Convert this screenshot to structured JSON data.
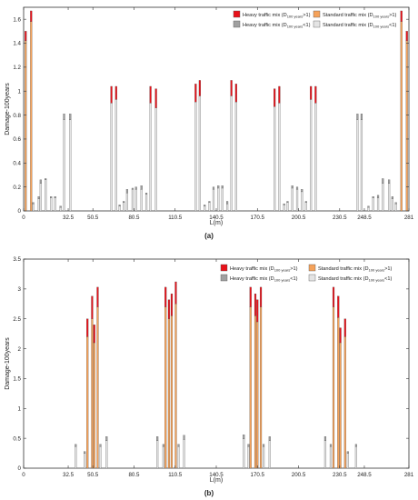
{
  "legend": {
    "heavy_gt1": "Heavy traffic mix (D",
    "heavy_lt1": "Heavy traffic mix (D",
    "standard_gt1": "Standard traffic mix (D",
    "standard_lt1": "Standard traffic mix (D",
    "sub": "100 years",
    "suffix_gt": ">1)",
    "suffix_lt": "<1)"
  },
  "colors": {
    "heavy_gt1": "#e8121a",
    "standard_gt1": "#f5a25a",
    "heavy_lt1": "#a0a0a0",
    "standard_lt1": "#e4e4e4"
  },
  "chart_data": [
    {
      "type": "bar",
      "panel_label": "(a)",
      "xlabel": "L(m)",
      "ylabel": "Damage-100years",
      "xlim": [
        0,
        281
      ],
      "ylim": [
        0,
        1.7
      ],
      "xticks": [
        0,
        32.5,
        50.5,
        80.5,
        110.5,
        140.5,
        170.5,
        200.5,
        230.5,
        248.5,
        281
      ],
      "xtick_labels": [
        "0",
        "32.5",
        "50.5",
        "80.5",
        "110.5",
        "140.5",
        "170.5",
        "200.5",
        "230.5",
        "248.5",
        "281"
      ],
      "yticks": [
        0,
        0.2,
        0.4,
        0.6,
        0.8,
        1,
        1.2,
        1.4,
        1.6
      ],
      "ytick_labels": [
        "0",
        "0.2",
        "0.4",
        "0.6",
        "0.8",
        "1",
        "1.2",
        "1.4",
        "1.6"
      ],
      "legend_placement": "top-right",
      "bars": [
        {
          "x": 1.5,
          "standard": 1.42,
          "heavy": 1.5
        },
        {
          "x": 5.5,
          "standard": 1.58,
          "heavy": 1.67
        },
        {
          "x": 7,
          "standard": 0.06,
          "heavy": 0.07
        },
        {
          "x": 11,
          "standard": 0.1,
          "heavy": 0.12
        },
        {
          "x": 12.5,
          "standard": 0.23,
          "heavy": 0.26
        },
        {
          "x": 16,
          "standard": 0.26,
          "heavy": 0.27
        },
        {
          "x": 20,
          "standard": 0.11,
          "heavy": 0.12
        },
        {
          "x": 23,
          "standard": 0.11,
          "heavy": 0.12
        },
        {
          "x": 27,
          "standard": 0.03,
          "heavy": 0.04
        },
        {
          "x": 29.5,
          "standard": 0.76,
          "heavy": 0.81
        },
        {
          "x": 34,
          "standard": 0.76,
          "heavy": 0.81
        },
        {
          "x": 64,
          "standard": 0.9,
          "heavy": 1.04
        },
        {
          "x": 67.5,
          "standard": 0.93,
          "heavy": 1.04
        },
        {
          "x": 70,
          "standard": 0.04,
          "heavy": 0.05
        },
        {
          "x": 73,
          "standard": 0.07,
          "heavy": 0.08
        },
        {
          "x": 75.5,
          "standard": 0.15,
          "heavy": 0.18
        },
        {
          "x": 79.5,
          "standard": 0.18,
          "heavy": 0.19
        },
        {
          "x": 82,
          "standard": 0.18,
          "heavy": 0.2
        },
        {
          "x": 86,
          "standard": 0.18,
          "heavy": 0.21
        },
        {
          "x": 89.5,
          "standard": 0.14,
          "heavy": 0.15
        },
        {
          "x": 92.5,
          "standard": 0.9,
          "heavy": 1.04
        },
        {
          "x": 96.5,
          "standard": 0.86,
          "heavy": 1.02
        },
        {
          "x": 125.5,
          "standard": 0.91,
          "heavy": 1.06
        },
        {
          "x": 128.5,
          "standard": 0.96,
          "heavy": 1.09
        },
        {
          "x": 132,
          "standard": 0.04,
          "heavy": 0.05
        },
        {
          "x": 135.5,
          "standard": 0.07,
          "heavy": 0.08
        },
        {
          "x": 138.5,
          "standard": 0.18,
          "heavy": 0.2
        },
        {
          "x": 142,
          "standard": 0.19,
          "heavy": 0.21
        },
        {
          "x": 145,
          "standard": 0.19,
          "heavy": 0.21
        },
        {
          "x": 148.5,
          "standard": 0.06,
          "heavy": 0.08
        },
        {
          "x": 151.5,
          "standard": 0.96,
          "heavy": 1.09
        },
        {
          "x": 155,
          "standard": 0.91,
          "heavy": 1.06
        },
        {
          "x": 183,
          "standard": 0.87,
          "heavy": 1.02
        },
        {
          "x": 186.5,
          "standard": 0.9,
          "heavy": 1.04
        },
        {
          "x": 190,
          "standard": 0.05,
          "heavy": 0.06
        },
        {
          "x": 192.5,
          "standard": 0.07,
          "heavy": 0.08
        },
        {
          "x": 196,
          "standard": 0.19,
          "heavy": 0.21
        },
        {
          "x": 199.5,
          "standard": 0.18,
          "heavy": 0.2
        },
        {
          "x": 203,
          "standard": 0.16,
          "heavy": 0.18
        },
        {
          "x": 206,
          "standard": 0.07,
          "heavy": 0.08
        },
        {
          "x": 209.5,
          "standard": 0.93,
          "heavy": 1.04
        },
        {
          "x": 213,
          "standard": 0.9,
          "heavy": 1.04
        },
        {
          "x": 243.5,
          "standard": 0.76,
          "heavy": 0.81
        },
        {
          "x": 246.5,
          "standard": 0.76,
          "heavy": 0.81
        },
        {
          "x": 251.5,
          "standard": 0.03,
          "heavy": 0.04
        },
        {
          "x": 255,
          "standard": 0.11,
          "heavy": 0.12
        },
        {
          "x": 258.5,
          "standard": 0.11,
          "heavy": 0.13
        },
        {
          "x": 262,
          "standard": 0.23,
          "heavy": 0.27
        },
        {
          "x": 266.5,
          "standard": 0.23,
          "heavy": 0.26
        },
        {
          "x": 269,
          "standard": 0.1,
          "heavy": 0.12
        },
        {
          "x": 271.5,
          "standard": 0.06,
          "heavy": 0.07
        },
        {
          "x": 275.5,
          "standard": 1.58,
          "heavy": 1.67
        },
        {
          "x": 279.5,
          "standard": 1.42,
          "heavy": 1.5
        }
      ]
    },
    {
      "type": "bar",
      "panel_label": "(b)",
      "xlabel": "L(m)",
      "ylabel": "Damage-100years",
      "xlim": [
        0,
        281
      ],
      "ylim": [
        0,
        3.5
      ],
      "xticks": [
        0,
        32.5,
        50.5,
        80.5,
        110.5,
        140.5,
        170.5,
        200.5,
        230.5,
        248.5,
        281
      ],
      "xtick_labels": [
        "0",
        "32.5",
        "50.5",
        "80.5",
        "110.5",
        "140.5",
        "170.5",
        "200.5",
        "230.5",
        "248.5",
        "281"
      ],
      "yticks": [
        0,
        0.5,
        1,
        1.5,
        2,
        2.5,
        3,
        3.5
      ],
      "ytick_labels": [
        "0",
        "0.5",
        "1",
        "1.5",
        "2",
        "2.5",
        "3",
        "3.5"
      ],
      "legend_placement": "top-right",
      "bars": [
        {
          "x": 38,
          "standard": 0.36,
          "heavy": 0.4
        },
        {
          "x": 44.5,
          "standard": 0.25,
          "heavy": 0.28
        },
        {
          "x": 46.5,
          "standard": 2.2,
          "heavy": 2.5
        },
        {
          "x": 50,
          "standard": 2.5,
          "heavy": 2.88
        },
        {
          "x": 51.5,
          "standard": 2.1,
          "heavy": 2.4
        },
        {
          "x": 54,
          "standard": 2.7,
          "heavy": 3.03
        },
        {
          "x": 56,
          "standard": 0.36,
          "heavy": 0.4
        },
        {
          "x": 60.5,
          "standard": 0.46,
          "heavy": 0.53
        },
        {
          "x": 97.5,
          "standard": 0.46,
          "heavy": 0.53
        },
        {
          "x": 102,
          "standard": 0.36,
          "heavy": 0.4
        },
        {
          "x": 103.5,
          "standard": 2.7,
          "heavy": 3.03
        },
        {
          "x": 106,
          "standard": 2.5,
          "heavy": 2.82
        },
        {
          "x": 108,
          "standard": 2.55,
          "heavy": 2.92
        },
        {
          "x": 111,
          "standard": 2.75,
          "heavy": 3.12
        },
        {
          "x": 113,
          "standard": 0.36,
          "heavy": 0.4
        },
        {
          "x": 117,
          "standard": 0.48,
          "heavy": 0.55
        },
        {
          "x": 160.5,
          "standard": 0.49,
          "heavy": 0.56
        },
        {
          "x": 164,
          "standard": 0.36,
          "heavy": 0.4
        },
        {
          "x": 165.5,
          "standard": 2.7,
          "heavy": 3.03
        },
        {
          "x": 169,
          "standard": 2.55,
          "heavy": 2.92
        },
        {
          "x": 170.5,
          "standard": 2.45,
          "heavy": 2.82
        },
        {
          "x": 173,
          "standard": 2.7,
          "heavy": 3.03
        },
        {
          "x": 175,
          "standard": 0.36,
          "heavy": 0.4
        },
        {
          "x": 179.5,
          "standard": 0.46,
          "heavy": 0.53
        },
        {
          "x": 220,
          "standard": 0.46,
          "heavy": 0.53
        },
        {
          "x": 224,
          "standard": 0.36,
          "heavy": 0.4
        },
        {
          "x": 226,
          "standard": 2.7,
          "heavy": 3.03
        },
        {
          "x": 229.5,
          "standard": 2.52,
          "heavy": 2.88
        },
        {
          "x": 231,
          "standard": 2.1,
          "heavy": 2.35
        },
        {
          "x": 234.5,
          "standard": 2.2,
          "heavy": 2.5
        },
        {
          "x": 236.5,
          "standard": 0.25,
          "heavy": 0.28
        },
        {
          "x": 242.5,
          "standard": 0.36,
          "heavy": 0.4
        }
      ]
    }
  ]
}
